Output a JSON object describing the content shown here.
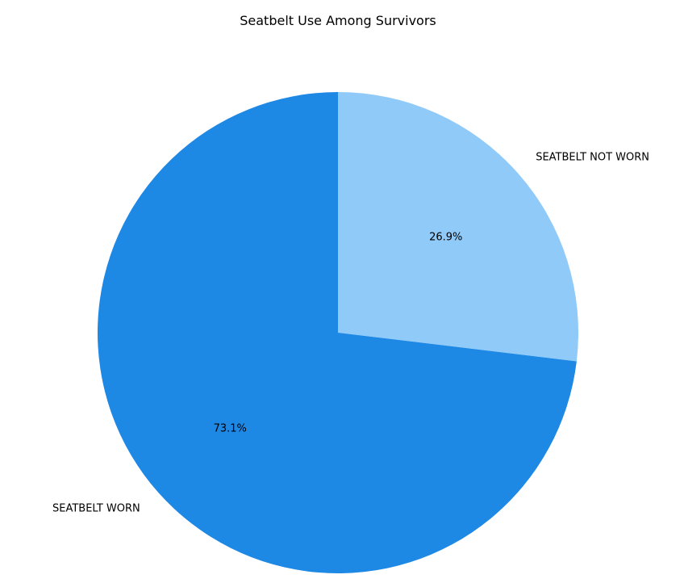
{
  "chart_data": {
    "type": "pie",
    "title": "Seatbelt Use Among Survivors",
    "slices": [
      {
        "label": "SEATBELT NOT WORN",
        "value": 26.9,
        "pct_label": "26.9%",
        "color": "#90caf9"
      },
      {
        "label": "SEATBELT WORN",
        "value": 73.1,
        "pct_label": "73.1%",
        "color": "#1e88e5"
      }
    ],
    "start_angle_deg": 90,
    "direction": "clockwise"
  }
}
